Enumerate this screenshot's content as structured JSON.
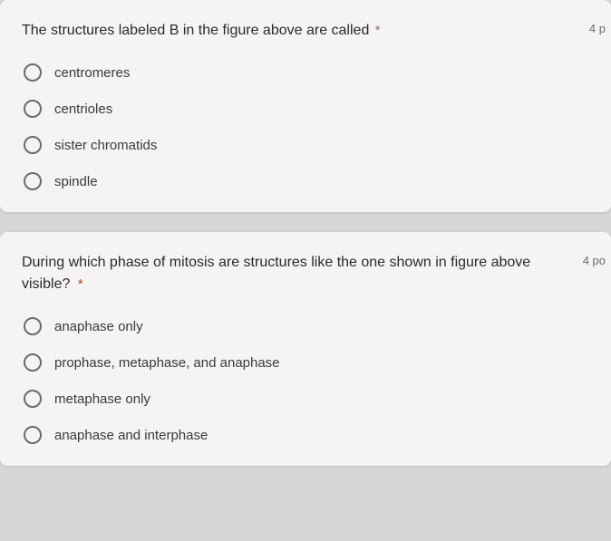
{
  "questions": [
    {
      "text": "The structures labeled B in the figure above are called",
      "required_marker": "*",
      "required_style": "grey",
      "points": "4 p",
      "options": [
        "centromeres",
        "centrioles",
        "sister chromatids",
        "spindle"
      ]
    },
    {
      "text": "During which phase of mitosis are structures like the one shown in figure above visible?",
      "required_marker": "*",
      "required_style": "red",
      "points": "4 po",
      "options": [
        "anaphase only",
        "prophase, metaphase, and anaphase",
        "metaphase only",
        "anaphase and interphase"
      ]
    }
  ],
  "colors": {
    "page_bg": "#d8d6d4",
    "card_bg": "#f5f4f2",
    "text_primary": "#2a2a2a",
    "text_option": "#3a3a3a",
    "radio_border": "#6b6b6b",
    "required_red": "#c53929"
  }
}
